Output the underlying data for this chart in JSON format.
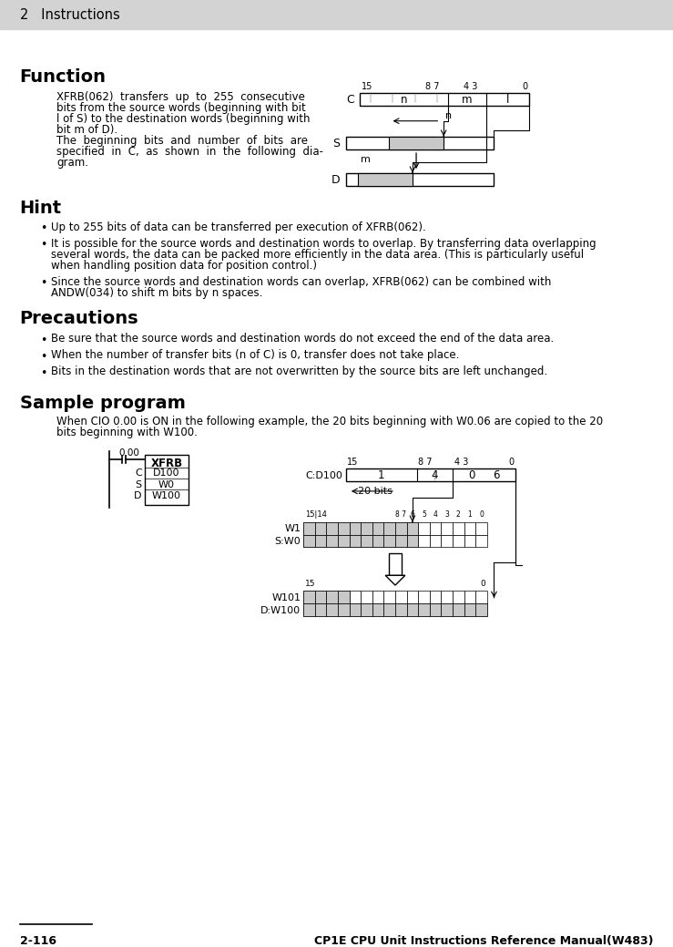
{
  "page_bg": "#ffffff",
  "header_bg": "#d3d3d3",
  "header_text": "2   Instructions",
  "footer_left": "2-116",
  "footer_right": "CP1E CPU Unit Instructions Reference Manual(W483)",
  "section_function_title": "Function",
  "section_hint_title": "Hint",
  "section_precautions_title": "Precautions",
  "section_sample_title": "Sample program",
  "gray_fill": "#c8c8c8",
  "func_lines": [
    "XFRB(062)  transfers  up  to  255  consecutive",
    "bits from the source words (beginning with bit",
    "l of S) to the destination words (beginning with",
    "bit m of D).",
    "The  beginning  bits  and  number  of  bits  are",
    "specified  in  C,  as  shown  in  the  following  dia-",
    "gram."
  ],
  "hint_items": [
    [
      "Up to 255 bits of data can be transferred per execution of XFRB(062)."
    ],
    [
      "It is possible for the source words and destination words to overlap. By transferring data overlapping",
      "several words, the data can be packed more efficiently in the data area. (This is particularly useful",
      "when handling position data for position control.)"
    ],
    [
      "Since the source words and destination words can overlap, XFRB(062) can be combined with",
      "ANDW(034) to shift m bits by n spaces."
    ]
  ],
  "prec_items": [
    [
      "Be sure that the source words and destination words do not exceed the end of the data area."
    ],
    [
      "When the number of transfer bits (n of C) is 0, transfer does not take place."
    ],
    [
      "Bits in the destination words that are not overwritten by the source bits are left unchanged."
    ]
  ],
  "sample_intro": [
    "When CIO 0.00 is ON in the following example, the 20 bits beginning with W0.06 are copied to the 20",
    "bits beginning with W100."
  ]
}
